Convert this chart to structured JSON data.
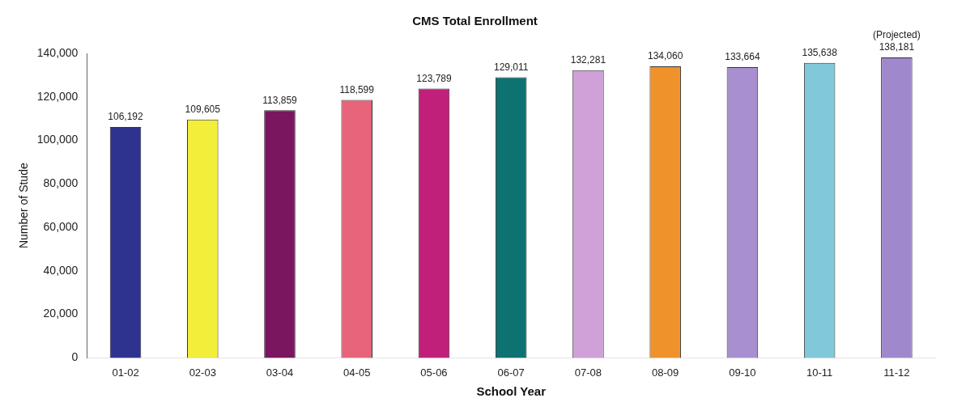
{
  "chart_data": {
    "type": "bar",
    "title": "CMS Total Enrollment",
    "xlabel": "School Year",
    "ylabel": "Number of Stude",
    "categories": [
      "01-02",
      "02-03",
      "03-04",
      "04-05",
      "05-06",
      "06-07",
      "07-08",
      "08-09",
      "09-10",
      "10-11",
      "11-12"
    ],
    "values": [
      106192,
      109605,
      113859,
      118599,
      123789,
      129011,
      132281,
      134060,
      133664,
      135638,
      138181
    ],
    "value_labels": [
      "106,192",
      "109,605",
      "113,859",
      "118,599",
      "123,789",
      "129,011",
      "132,281",
      "134,060",
      "133,664",
      "135,638",
      "138,181"
    ],
    "colors": [
      "#2e3390",
      "#f2ee3a",
      "#7a1560",
      "#e8647a",
      "#c0207a",
      "#0f7272",
      "#d0a0d8",
      "#f0922a",
      "#a890d0",
      "#80c8da",
      "#a088cc"
    ],
    "ylim": [
      0,
      140000
    ],
    "yticks": [
      0,
      {
        "value": 20000,
        "label": "20,000"
      },
      {
        "value": 40000,
        "label": "40,000"
      },
      {
        "value": 60000,
        "label": "60,000"
      },
      {
        "value": 80000,
        "label": "80,000"
      },
      {
        "value": 100000,
        "label": "100,000"
      },
      {
        "value": 120000,
        "label": "120,000"
      },
      {
        "value": 140000,
        "label": "140,000"
      }
    ],
    "grid": false,
    "legend": false,
    "annotations": [
      {
        "text": "(Projected)",
        "x": "11-12",
        "y": 138181
      }
    ]
  }
}
